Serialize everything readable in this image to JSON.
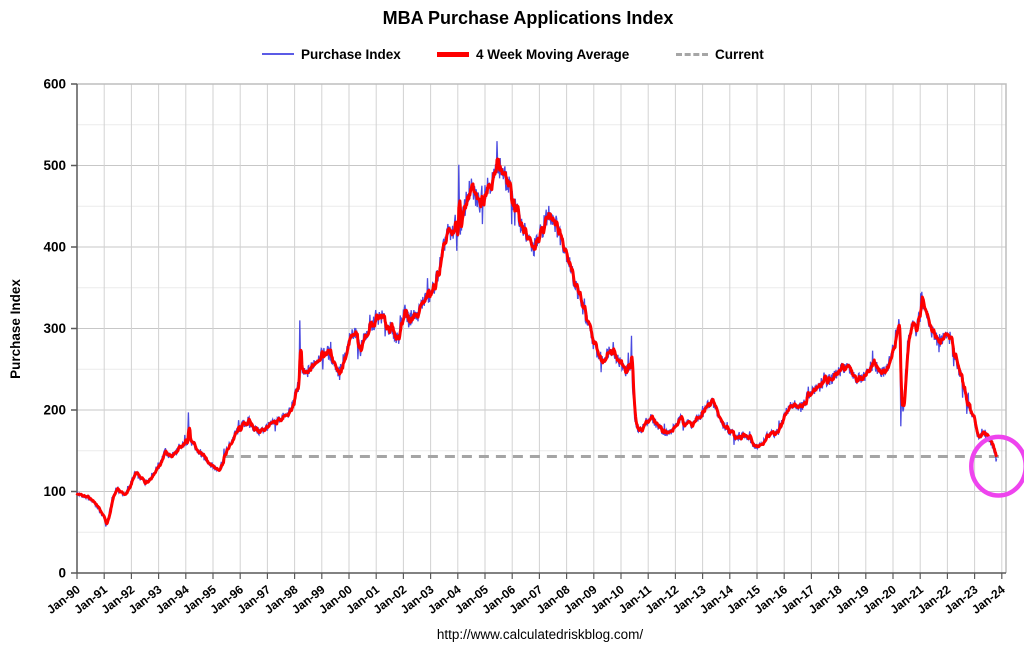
{
  "title": "MBA Purchase Applications Index",
  "footer_url": "http://www.calculatedriskblog.com/",
  "legend": [
    {
      "label": "Purchase Index",
      "color": "#5b5be6",
      "style": "thin-line"
    },
    {
      "label": "4 Week Moving Average",
      "color": "#fe0000",
      "style": "thick-line"
    },
    {
      "label": "Current",
      "color": "#a6a6a6",
      "style": "dashed-line"
    }
  ],
  "chart_data": {
    "type": "line",
    "title": "MBA Purchase Applications Index",
    "xlabel": "",
    "ylabel": "Purchase Index",
    "ylim": [
      0,
      600
    ],
    "ytick_step": 100,
    "y_tick_labels": [
      "0",
      "100",
      "200",
      "300",
      "400",
      "500",
      "600"
    ],
    "x_tick_labels": [
      "Jan-90",
      "Jan-91",
      "Jan-92",
      "Jan-93",
      "Jan-94",
      "Jan-95",
      "Jan-96",
      "Jan-97",
      "Jan-98",
      "Jan-99",
      "Jan-00",
      "Jan-01",
      "Jan-02",
      "Jan-03",
      "Jan-04",
      "Jan-05",
      "Jan-06",
      "Jan-07",
      "Jan-08",
      "Jan-09",
      "Jan-10",
      "Jan-11",
      "Jan-12",
      "Jan-13",
      "Jan-14",
      "Jan-15",
      "Jan-16",
      "Jan-17",
      "Jan-18",
      "Jan-19",
      "Jan-20",
      "Jan-21",
      "Jan-22",
      "Jan-23",
      "Jan-24"
    ],
    "x_start_year": 1990,
    "grid": true,
    "legend_position": "top",
    "frequency": "weekly",
    "current": {
      "label": "Current",
      "value": 143,
      "line_start_year": 1995.4,
      "color": "#a5a5a5"
    },
    "series": [
      {
        "name": "4 Week Moving Average",
        "color": "#fe0000",
        "anchors": [
          [
            1990.0,
            97
          ],
          [
            1990.2,
            95
          ],
          [
            1990.4,
            92
          ],
          [
            1990.6,
            88
          ],
          [
            1990.8,
            78
          ],
          [
            1991.0,
            67
          ],
          [
            1991.08,
            62
          ],
          [
            1991.17,
            70
          ],
          [
            1991.3,
            92
          ],
          [
            1991.45,
            104
          ],
          [
            1991.6,
            99
          ],
          [
            1991.8,
            96
          ],
          [
            1992.0,
            112
          ],
          [
            1992.15,
            123
          ],
          [
            1992.3,
            117
          ],
          [
            1992.5,
            111
          ],
          [
            1992.7,
            117
          ],
          [
            1992.9,
            127
          ],
          [
            1993.1,
            139
          ],
          [
            1993.25,
            149
          ],
          [
            1993.4,
            143
          ],
          [
            1993.6,
            147
          ],
          [
            1993.8,
            153
          ],
          [
            1994.0,
            161
          ],
          [
            1994.15,
            164
          ],
          [
            1994.3,
            154
          ],
          [
            1994.5,
            147
          ],
          [
            1994.7,
            141
          ],
          [
            1994.9,
            134
          ],
          [
            1995.05,
            129
          ],
          [
            1995.2,
            127
          ],
          [
            1995.35,
            137
          ],
          [
            1995.5,
            150
          ],
          [
            1995.7,
            163
          ],
          [
            1995.9,
            174
          ],
          [
            1996.1,
            182
          ],
          [
            1996.3,
            187
          ],
          [
            1996.5,
            178
          ],
          [
            1996.7,
            173
          ],
          [
            1996.9,
            178
          ],
          [
            1997.1,
            181
          ],
          [
            1997.3,
            186
          ],
          [
            1997.5,
            190
          ],
          [
            1997.7,
            193
          ],
          [
            1997.9,
            201
          ],
          [
            1998.1,
            230
          ],
          [
            1998.25,
            249
          ],
          [
            1998.4,
            243
          ],
          [
            1998.6,
            252
          ],
          [
            1998.8,
            262
          ],
          [
            1999.0,
            268
          ],
          [
            1999.2,
            272
          ],
          [
            1999.4,
            262
          ],
          [
            1999.6,
            247
          ],
          [
            1999.8,
            253
          ],
          [
            2000.0,
            284
          ],
          [
            2000.2,
            299
          ],
          [
            2000.4,
            276
          ],
          [
            2000.6,
            291
          ],
          [
            2000.8,
            301
          ],
          [
            2001.0,
            310
          ],
          [
            2001.2,
            315
          ],
          [
            2001.4,
            303
          ],
          [
            2001.6,
            297
          ],
          [
            2001.75,
            288
          ],
          [
            2001.9,
            301
          ],
          [
            2002.05,
            324
          ],
          [
            2002.2,
            309
          ],
          [
            2002.35,
            317
          ],
          [
            2002.5,
            314
          ],
          [
            2002.65,
            329
          ],
          [
            2002.8,
            337
          ],
          [
            2003.0,
            341
          ],
          [
            2003.15,
            354
          ],
          [
            2003.3,
            371
          ],
          [
            2003.45,
            394
          ],
          [
            2003.6,
            419
          ],
          [
            2003.75,
            413
          ],
          [
            2003.9,
            427
          ],
          [
            2004.05,
            421
          ],
          [
            2004.2,
            439
          ],
          [
            2004.35,
            464
          ],
          [
            2004.5,
            471
          ],
          [
            2004.65,
            461
          ],
          [
            2004.8,
            454
          ],
          [
            2004.95,
            467
          ],
          [
            2005.1,
            477
          ],
          [
            2005.25,
            481
          ],
          [
            2005.4,
            489
          ],
          [
            2005.55,
            497
          ],
          [
            2005.7,
            487
          ],
          [
            2005.85,
            477
          ],
          [
            2006.0,
            461
          ],
          [
            2006.15,
            444
          ],
          [
            2006.3,
            431
          ],
          [
            2006.45,
            419
          ],
          [
            2006.6,
            407
          ],
          [
            2006.75,
            397
          ],
          [
            2006.9,
            404
          ],
          [
            2007.05,
            417
          ],
          [
            2007.2,
            431
          ],
          [
            2007.35,
            442
          ],
          [
            2007.5,
            437
          ],
          [
            2007.65,
            424
          ],
          [
            2007.8,
            411
          ],
          [
            2007.95,
            399
          ],
          [
            2008.1,
            381
          ],
          [
            2008.25,
            361
          ],
          [
            2008.4,
            347
          ],
          [
            2008.55,
            329
          ],
          [
            2008.7,
            314
          ],
          [
            2008.85,
            297
          ],
          [
            2009.0,
            281
          ],
          [
            2009.15,
            269
          ],
          [
            2009.3,
            261
          ],
          [
            2009.45,
            267
          ],
          [
            2009.6,
            276
          ],
          [
            2009.75,
            271
          ],
          [
            2009.9,
            261
          ],
          [
            2010.05,
            254
          ],
          [
            2010.2,
            247
          ],
          [
            2010.32,
            257
          ],
          [
            2010.42,
            228
          ],
          [
            2010.52,
            184
          ],
          [
            2010.65,
            174
          ],
          [
            2010.8,
            179
          ],
          [
            2010.95,
            187
          ],
          [
            2011.1,
            191
          ],
          [
            2011.25,
            185
          ],
          [
            2011.4,
            179
          ],
          [
            2011.55,
            175
          ],
          [
            2011.7,
            171
          ],
          [
            2011.85,
            174
          ],
          [
            2012.0,
            181
          ],
          [
            2012.2,
            189
          ],
          [
            2012.4,
            185
          ],
          [
            2012.6,
            182
          ],
          [
            2012.8,
            189
          ],
          [
            2013.0,
            195
          ],
          [
            2013.15,
            205
          ],
          [
            2013.3,
            211
          ],
          [
            2013.45,
            204
          ],
          [
            2013.6,
            191
          ],
          [
            2013.75,
            182
          ],
          [
            2013.9,
            177
          ],
          [
            2014.1,
            171
          ],
          [
            2014.3,
            167
          ],
          [
            2014.5,
            169
          ],
          [
            2014.7,
            165
          ],
          [
            2014.9,
            157
          ],
          [
            2015.05,
            154
          ],
          [
            2015.2,
            159
          ],
          [
            2015.35,
            167
          ],
          [
            2015.5,
            171
          ],
          [
            2015.65,
            169
          ],
          [
            2015.8,
            174
          ],
          [
            2016.0,
            194
          ],
          [
            2016.2,
            204
          ],
          [
            2016.4,
            207
          ],
          [
            2016.6,
            203
          ],
          [
            2016.8,
            209
          ],
          [
            2017.0,
            221
          ],
          [
            2017.2,
            229
          ],
          [
            2017.4,
            233
          ],
          [
            2017.6,
            237
          ],
          [
            2017.8,
            239
          ],
          [
            2018.0,
            247
          ],
          [
            2018.2,
            253
          ],
          [
            2018.4,
            249
          ],
          [
            2018.6,
            242
          ],
          [
            2018.8,
            237
          ],
          [
            2019.0,
            241
          ],
          [
            2019.15,
            251
          ],
          [
            2019.3,
            257
          ],
          [
            2019.45,
            249
          ],
          [
            2019.6,
            245
          ],
          [
            2019.75,
            251
          ],
          [
            2019.9,
            261
          ],
          [
            2020.05,
            281
          ],
          [
            2020.15,
            301
          ],
          [
            2020.22,
            309
          ],
          [
            2020.3,
            244
          ],
          [
            2020.37,
            196
          ],
          [
            2020.45,
            236
          ],
          [
            2020.55,
            286
          ],
          [
            2020.7,
            304
          ],
          [
            2020.85,
            297
          ],
          [
            2021.0,
            317
          ],
          [
            2021.1,
            334
          ],
          [
            2021.2,
            327
          ],
          [
            2021.35,
            304
          ],
          [
            2021.5,
            291
          ],
          [
            2021.65,
            284
          ],
          [
            2021.8,
            287
          ],
          [
            2021.95,
            294
          ],
          [
            2022.1,
            288
          ],
          [
            2022.25,
            273
          ],
          [
            2022.4,
            253
          ],
          [
            2022.55,
            233
          ],
          [
            2022.7,
            213
          ],
          [
            2022.85,
            197
          ],
          [
            2023.0,
            186
          ],
          [
            2023.1,
            171
          ],
          [
            2023.2,
            167
          ],
          [
            2023.3,
            174
          ],
          [
            2023.42,
            171
          ],
          [
            2023.55,
            164
          ],
          [
            2023.67,
            156
          ],
          [
            2023.75,
            148
          ],
          [
            2023.81,
            141
          ]
        ]
      },
      {
        "name": "Purchase Index",
        "color": "#4a4ae0",
        "derivation": "weekly index = moving-average baseline plus weekly volatility",
        "weekly_noise_pct": 3.0,
        "spike_multiplier": 2.6,
        "notable_weekly_extremes": [
          [
            1991.05,
            57
          ],
          [
            1994.1,
            197
          ],
          [
            1998.2,
            310
          ],
          [
            2004.03,
            501
          ],
          [
            2005.45,
            530
          ],
          [
            2010.38,
            291
          ],
          [
            2020.28,
            180
          ],
          [
            2021.05,
            345
          ]
        ]
      }
    ],
    "annotation_ellipse": {
      "x_year": 2023.88,
      "y_value": 131,
      "rx_years": 1.0,
      "ry_units": 36,
      "color": "#ee44ee",
      "meaning": "highlights current low at end of series"
    },
    "data_end_year": 2023.81,
    "current_value_estimate": 141
  }
}
